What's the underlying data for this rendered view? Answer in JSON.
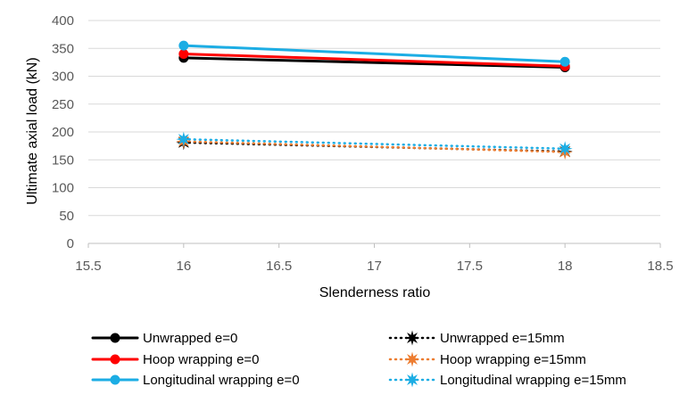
{
  "chart_data": {
    "type": "scatter",
    "xlabel": "Slenderness ratio",
    "ylabel": "Ultimate axial load (kN)",
    "xlim": [
      15.5,
      18.5
    ],
    "ylim": [
      0,
      400
    ],
    "x_ticks": [
      "15.5",
      "16",
      "16.5",
      "17",
      "17.5",
      "18",
      "18.5"
    ],
    "y_ticks": [
      "0",
      "50",
      "100",
      "150",
      "200",
      "250",
      "300",
      "350",
      "400"
    ],
    "grid": "horizontal",
    "legend_position": "bottom",
    "series": [
      {
        "name": "Unwrapped e=0",
        "x": [
          16,
          18
        ],
        "y": [
          333,
          316
        ],
        "color": "#000000",
        "line": "solid",
        "marker": "circle"
      },
      {
        "name": "Unwrapped e=15mm",
        "x": [
          16,
          18
        ],
        "y": [
          181,
          165
        ],
        "color": "#000000",
        "line": "dotted",
        "marker": "star"
      },
      {
        "name": "Hoop wrapping e=0",
        "x": [
          16,
          18
        ],
        "y": [
          340,
          318
        ],
        "color": "#ff0000",
        "line": "solid",
        "marker": "circle"
      },
      {
        "name": "Hoop wrapping e=15mm",
        "x": [
          16,
          18
        ],
        "y": [
          183,
          164
        ],
        "color": "#ed7d31",
        "line": "dotted",
        "marker": "star"
      },
      {
        "name": "Longitudinal wrapping e=0",
        "x": [
          16,
          18
        ],
        "y": [
          355,
          326
        ],
        "color": "#1cade4",
        "line": "solid",
        "marker": "circle"
      },
      {
        "name": "Longitudinal wrapping e=15mm",
        "x": [
          16,
          18
        ],
        "y": [
          187,
          170
        ],
        "color": "#1cade4",
        "line": "dotted",
        "marker": "star"
      }
    ]
  }
}
